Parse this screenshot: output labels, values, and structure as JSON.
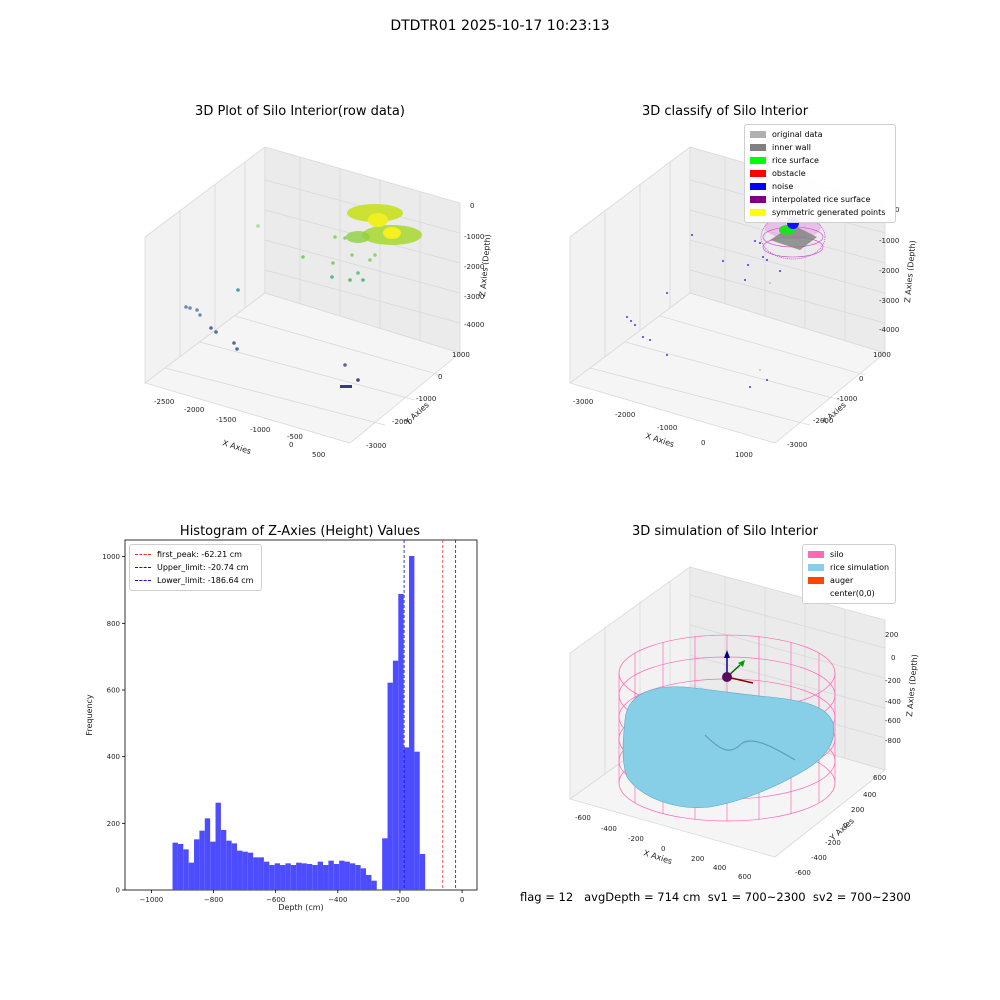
{
  "figure": {
    "title": "DTDTR01 2025-10-17 10:23:13"
  },
  "footer": {
    "text": "flag = 12   avgDepth = 714 cm  sv1 = 700~2300  sv2 = 700~2300"
  },
  "colors": {
    "hist_bar": "#4d4dff",
    "first_peak": "#e83030",
    "limit": "#1010c0",
    "silo": "#ff69b4",
    "rice": "#87cefa",
    "auger": "#ff4500"
  },
  "panel1": {
    "title": "3D Plot of Silo Interior(row data)",
    "xlabel": "X Axies",
    "ylabel": "Y Axies",
    "zlabel": "Z Axies (Depth)",
    "xticks": [
      "-2500",
      "-2000",
      "-1500",
      "-1000",
      "-500",
      "0",
      "500"
    ],
    "yticks": [
      "1000",
      "0",
      "-1000",
      "-2000",
      "-3000"
    ],
    "zticks": [
      "0",
      "-1000",
      "-2000",
      "-3000",
      "-4000"
    ]
  },
  "panel2": {
    "title": "3D classify of Silo Interior",
    "xlabel": "X Axies",
    "ylabel": "Y Axies",
    "zlabel": "Z Axies (Depth)",
    "xticks": [
      "-3000",
      "-2000",
      "-1000",
      "0",
      "1000"
    ],
    "yticks": [
      "1000",
      "0",
      "-1000",
      "-2000",
      "-3000"
    ],
    "zticks": [
      "0",
      "-1000",
      "-2000",
      "-3000",
      "-4000"
    ],
    "legend": [
      {
        "label": "original data",
        "color": "#b0b0b0"
      },
      {
        "label": "inner wall",
        "color": "#808080"
      },
      {
        "label": "rice surface",
        "color": "#00ff00"
      },
      {
        "label": "obstacle",
        "color": "#ff0000"
      },
      {
        "label": "noise",
        "color": "#0000ff"
      },
      {
        "label": "interpolated rice surface",
        "color": "#800080"
      },
      {
        "label": "symmetric generated points",
        "color": "#ffff00"
      }
    ]
  },
  "panel4": {
    "title": "3D simulation of Silo Interior",
    "xlabel": "X Axies",
    "ylabel": "Y Axies",
    "zlabel": "Z Axies (Depth)",
    "xticks": [
      "-600",
      "-400",
      "-200",
      "0",
      "200",
      "400",
      "600"
    ],
    "yticks": [
      "600",
      "400",
      "200",
      "0",
      "-200",
      "-400",
      "-600"
    ],
    "zticks": [
      "200",
      "0",
      "-200",
      "-400",
      "-600",
      "-800"
    ],
    "legend": [
      {
        "label": "silo",
        "color": "#ff69b4"
      },
      {
        "label": "rice simulation",
        "color": "#87ceeb"
      },
      {
        "label": "auger",
        "color": "#ff4500"
      },
      {
        "label": "center(0,0)",
        "color": ""
      }
    ]
  },
  "chart_data": [
    {
      "type": "bar",
      "title": "Histogram of Z-Axies (Height) Values",
      "xlabel": "Depth (cm)",
      "ylabel": "Frequency",
      "xlim": [
        -1085,
        48
      ],
      "ylim": [
        0,
        1050
      ],
      "xticks": [
        -1000,
        -800,
        -600,
        -400,
        -200,
        0
      ],
      "yticks": [
        0,
        200,
        400,
        600,
        800,
        1000
      ],
      "bin_start": -932,
      "bin_width": 17.3,
      "values": [
        142,
        138,
        122,
        82,
        152,
        178,
        215,
        145,
        262,
        180,
        148,
        140,
        118,
        115,
        112,
        98,
        98,
        85,
        75,
        80,
        75,
        80,
        75,
        82,
        80,
        78,
        75,
        85,
        75,
        88,
        78,
        88,
        85,
        80,
        75,
        65,
        45,
        28,
        0,
        155,
        622,
        688,
        888,
        428,
        1002,
        415,
        108
      ],
      "lines": [
        {
          "label": "first_peak: -62.21 cm",
          "x": -62.21,
          "color": "#e83030"
        },
        {
          "label": "Upper_limit: -20.74 cm",
          "x": -20.74,
          "color": "#1010c0"
        },
        {
          "label": "Lower_limit: -186.64 cm",
          "x": -186.64,
          "color": "#1010c0"
        }
      ],
      "grid": false,
      "legend_position": "top-left"
    }
  ]
}
